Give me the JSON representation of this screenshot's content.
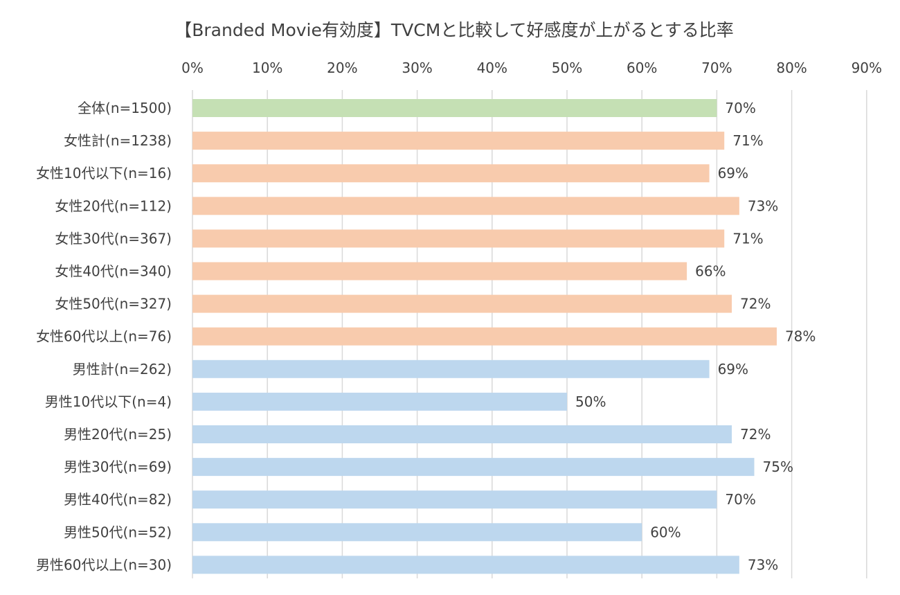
{
  "chart_data": {
    "type": "bar",
    "orientation": "horizontal",
    "title": "【Branded Movie有効度】TVCMと比較して好感度が上がるとする比率",
    "xlabel": "",
    "ylabel": "",
    "xlim": [
      0,
      90
    ],
    "x_ticks": [
      0,
      10,
      20,
      30,
      40,
      50,
      60,
      70,
      80,
      90
    ],
    "x_tick_labels": [
      "0%",
      "10%",
      "20%",
      "30%",
      "40%",
      "50%",
      "60%",
      "70%",
      "80%",
      "90%"
    ],
    "grid": true,
    "legend": "none",
    "categories": [
      "全体(n=1500)",
      "女性計(n=1238)",
      "女性10代以下(n=16)",
      "女性20代(n=112)",
      "女性30代(n=367)",
      "女性40代(n=340)",
      "女性50代(n=327)",
      "女性60代以上(n=76)",
      "男性計(n=262)",
      "男性10代以下(n=4)",
      "男性20代(n=25)",
      "男性30代(n=69)",
      "男性40代(n=82)",
      "男性50代(n=52)",
      "男性60代以上(n=30)"
    ],
    "values": [
      70,
      71,
      69,
      73,
      71,
      66,
      72,
      78,
      69,
      50,
      72,
      75,
      70,
      60,
      73
    ],
    "value_labels": [
      "70%",
      "71%",
      "69%",
      "73%",
      "71%",
      "66%",
      "72%",
      "78%",
      "69%",
      "50%",
      "72%",
      "75%",
      "70%",
      "60%",
      "73%"
    ],
    "bar_groups": [
      "total",
      "female",
      "female",
      "female",
      "female",
      "female",
      "female",
      "female",
      "male",
      "male",
      "male",
      "male",
      "male",
      "male",
      "male"
    ]
  },
  "colors": {
    "total": "#c5e0b4",
    "female": "#f8cbad",
    "male": "#bdd7ee",
    "grid": "#d9d9d9",
    "text": "#404040"
  }
}
